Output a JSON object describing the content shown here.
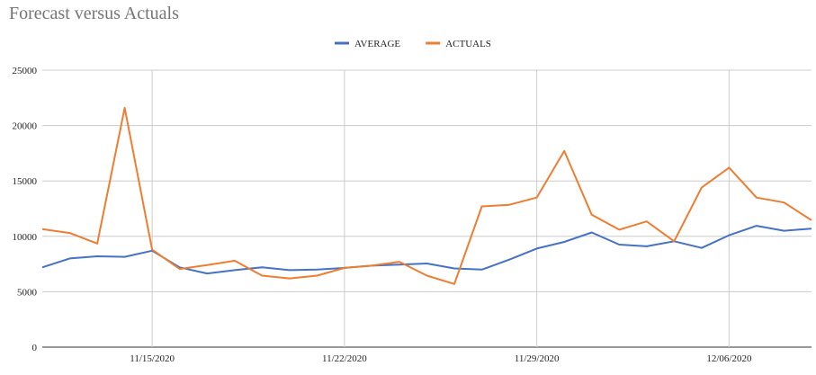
{
  "chart_data": {
    "type": "line",
    "title": "Forecast versus Actuals",
    "xlabel": "",
    "ylabel": "",
    "legend_position": "top-center",
    "grid": true,
    "ylim": [
      0,
      25000
    ],
    "y_ticks": [
      "0",
      "5000",
      "10000",
      "15000",
      "20000",
      "25000"
    ],
    "x_tick_labels": [
      {
        "index": 4,
        "label": "11/15/2020"
      },
      {
        "index": 11,
        "label": "11/22/2020"
      },
      {
        "index": 18,
        "label": "11/29/2020"
      },
      {
        "index": 25,
        "label": "12/06/2020"
      }
    ],
    "x": [
      "11/11/2020",
      "11/12/2020",
      "11/13/2020",
      "11/14/2020",
      "11/15/2020",
      "11/16/2020",
      "11/17/2020",
      "11/18/2020",
      "11/19/2020",
      "11/20/2020",
      "11/21/2020",
      "11/22/2020",
      "11/23/2020",
      "11/24/2020",
      "11/25/2020",
      "11/26/2020",
      "11/27/2020",
      "11/28/2020",
      "11/29/2020",
      "11/30/2020",
      "12/01/2020",
      "12/02/2020",
      "12/03/2020",
      "12/04/2020",
      "12/05/2020",
      "12/06/2020",
      "12/07/2020",
      "12/08/2020",
      "12/09/2020"
    ],
    "series": [
      {
        "name": "AVERAGE",
        "color": "#4472c4",
        "values": [
          7200,
          8000,
          8200,
          8150,
          8700,
          7200,
          6650,
          6950,
          7200,
          6950,
          7000,
          7150,
          7350,
          7450,
          7550,
          7100,
          7000,
          7900,
          8900,
          9500,
          10350,
          9250,
          9100,
          9550,
          8950,
          10100,
          10950,
          10500,
          10700
        ]
      },
      {
        "name": "ACTUALS",
        "color": "#ed7d31",
        "values": [
          10650,
          10300,
          9350,
          21600,
          8800,
          7050,
          7400,
          7800,
          6450,
          6200,
          6450,
          7150,
          7350,
          7700,
          6450,
          5700,
          12700,
          12850,
          13500,
          17700,
          11950,
          10600,
          11350,
          9550,
          14400,
          16200,
          13500,
          13050,
          11450
        ]
      }
    ]
  }
}
